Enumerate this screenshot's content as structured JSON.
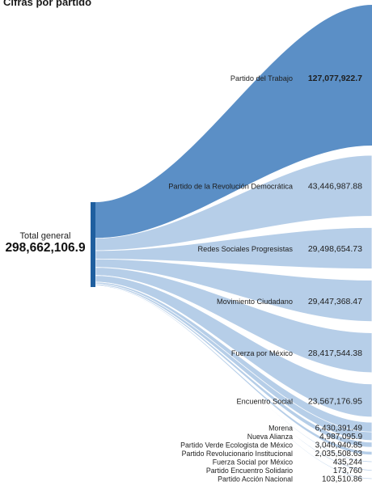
{
  "title": "Cifras por partido",
  "total": {
    "label": "Total general",
    "value": "298,662,106.9"
  },
  "colors": {
    "main": "#5b8fc6",
    "light": "#b6cee8",
    "bar": "#1f5f9f",
    "bg": "#ffffff"
  },
  "chart_data": {
    "type": "sankey",
    "title": "Cifras por partido",
    "source": {
      "name": "Total general",
      "value": 298662106.9,
      "label": "298,662,106.9"
    },
    "series": [
      {
        "name": "Partido del Trabajo",
        "value": 127077922.7,
        "label": "127,077,922.7"
      },
      {
        "name": "Partido de la Revolución Democrática",
        "value": 43446987.88,
        "label": "43,446,987.88"
      },
      {
        "name": "Redes Sociales Progresistas",
        "value": 29498654.73,
        "label": "29,498,654.73"
      },
      {
        "name": "Movimiento Ciudadano",
        "value": 29447368.47,
        "label": "29,447,368.47"
      },
      {
        "name": "Fuerza por México",
        "value": 28417544.38,
        "label": "28,417,544.38"
      },
      {
        "name": "Encuentro Social",
        "value": 23567176.95,
        "label": "23,567,176.95"
      },
      {
        "name": "Morena",
        "value": 6430391.49,
        "label": "6,430,391.49"
      },
      {
        "name": "Nueva Alianza",
        "value": 4987095.9,
        "label": "4,987,095.9"
      },
      {
        "name": "Partido Verde Ecologista de México",
        "value": 3040940.85,
        "label": "3,040,940.85"
      },
      {
        "name": "Partido Revolucionario Institucional",
        "value": 2035508.63,
        "label": "2,035,508.63"
      },
      {
        "name": "Fuerza Social por México",
        "value": 435244,
        "label": "435,244"
      },
      {
        "name": "Partido Encuentro Solidario",
        "value": 173760,
        "label": "173,760"
      },
      {
        "name": "Partido Acción Nacional",
        "value": 103510.86,
        "label": "103,510.86"
      }
    ]
  }
}
